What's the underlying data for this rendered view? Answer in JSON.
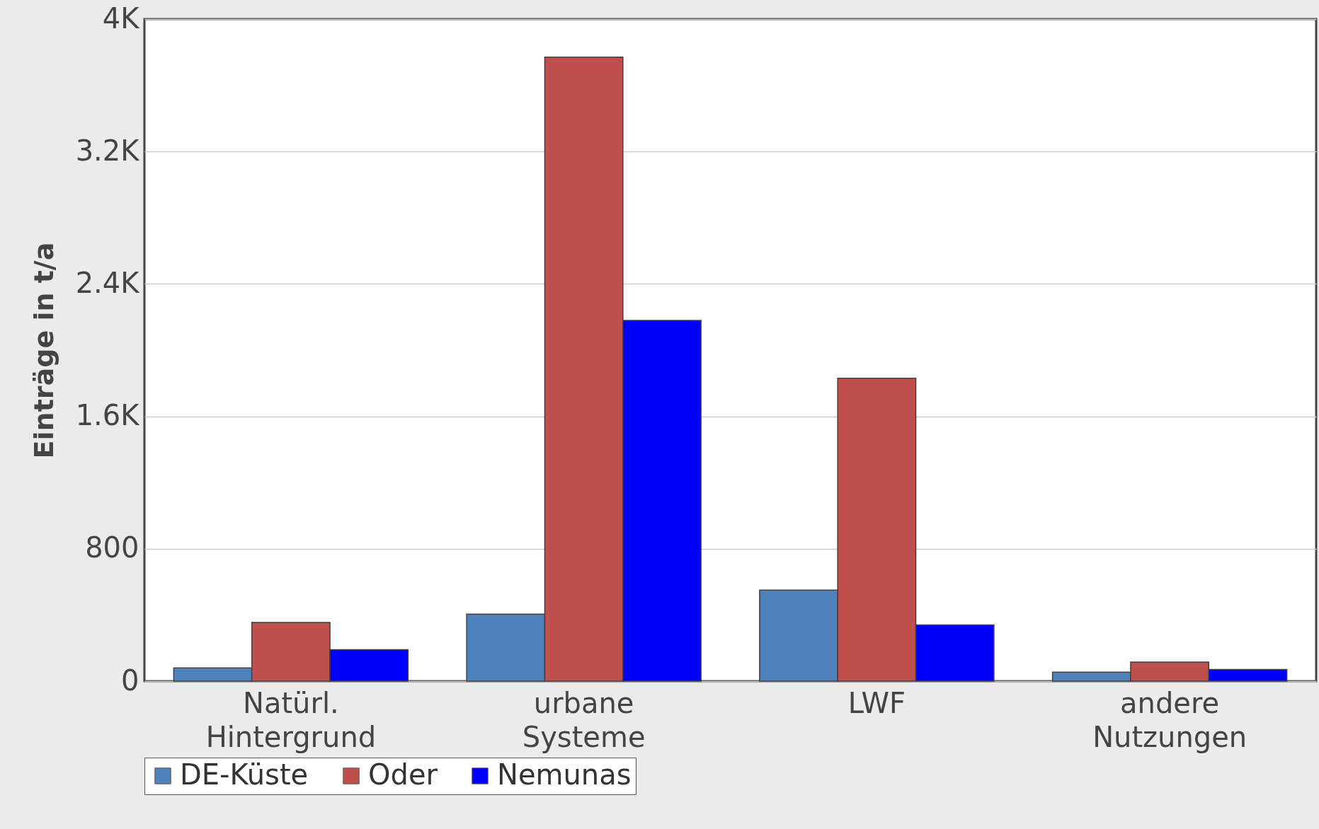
{
  "chart_data": {
    "type": "bar",
    "ylabel": "Einträge in t/a",
    "categories": [
      "Natürl. Hintergrund",
      "urbane Systeme",
      "LWF",
      "andere Nutzungen"
    ],
    "series": [
      {
        "name": "DE-Küste",
        "color": "#4f81bd",
        "values": [
          80,
          405,
          550,
          55
        ]
      },
      {
        "name": "Oder",
        "color": "#c0504d",
        "values": [
          355,
          3770,
          1830,
          115
        ]
      },
      {
        "name": "Nemunas",
        "color": "#0000ff",
        "values": [
          190,
          2180,
          340,
          70
        ]
      }
    ],
    "ylim": [
      0,
      4000
    ],
    "yticks": [
      0,
      800,
      {
        "value": 1600,
        "label": "1.6K"
      },
      {
        "value": 2400,
        "label": "2.4K"
      },
      {
        "value": 3200,
        "label": "3.2K"
      },
      {
        "value": 4000,
        "label": "4K"
      }
    ],
    "grid": "y",
    "legend": "bottom"
  }
}
